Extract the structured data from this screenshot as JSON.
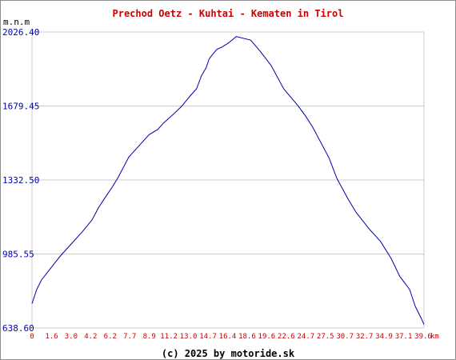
{
  "chart_data": {
    "type": "line",
    "title": "Prechod Oetz - Kuhtai - Kematen in Tirol",
    "ylabel": "m.n.m",
    "xlabel": "km",
    "footer": "(c) 2025 by motoride.sk",
    "ylim": [
      638.6,
      2026.4
    ],
    "xlim": [
      0,
      40.5
    ],
    "y_ticks": [
      "638.60",
      "985.55",
      "1332.50",
      "1679.45",
      "2026.40"
    ],
    "x_ticks": [
      "0",
      "1.6",
      "3.0",
      "4.2",
      "6.2",
      "7.7",
      "8.9",
      "11.2",
      "13.0",
      "14.7",
      "16.4",
      "18.6",
      "19.6",
      "22.6",
      "24.7",
      "27.5",
      "30.7",
      "32.7",
      "34.9",
      "37.1",
      "39.6"
    ],
    "grid": true,
    "colors": {
      "line": "#0000aa",
      "title": "#cc0000",
      "x_ticks": "#cc0000",
      "y_ticks": "#0000aa",
      "grid": "#cccccc"
    },
    "series": [
      {
        "x": [
          0,
          0.5,
          1.0,
          1.6,
          2.3,
          3.0,
          3.6,
          4.2,
          5.2,
          6.2,
          6.9,
          7.7,
          8.3,
          8.9,
          10.0,
          11.2,
          12.1,
          13.0,
          13.6,
          14.1,
          14.7,
          15.5,
          16.4,
          17.0,
          17.5,
          18.0,
          18.3,
          18.6,
          19.1,
          19.6,
          20.3,
          21.1,
          22.6,
          23.6,
          24.7,
          26.0,
          27.5,
          28.3,
          29.0,
          30.7,
          31.5,
          32.7,
          33.5,
          34.9,
          36.0,
          37.1,
          38.0,
          39.0,
          39.6,
          40.2,
          40.5
        ],
        "y": [
          753,
          820,
          865,
          900,
          940,
          980,
          1010,
          1040,
          1090,
          1145,
          1205,
          1260,
          1300,
          1345,
          1440,
          1500,
          1545,
          1570,
          1600,
          1620,
          1645,
          1680,
          1730,
          1760,
          1820,
          1860,
          1900,
          1918,
          1945,
          1955,
          1975,
          2005,
          1988,
          1935,
          1870,
          1760,
          1680,
          1630,
          1580,
          1435,
          1340,
          1240,
          1180,
          1100,
          1045,
          965,
          880,
          820,
          740,
          685,
          655
        ]
      }
    ]
  }
}
